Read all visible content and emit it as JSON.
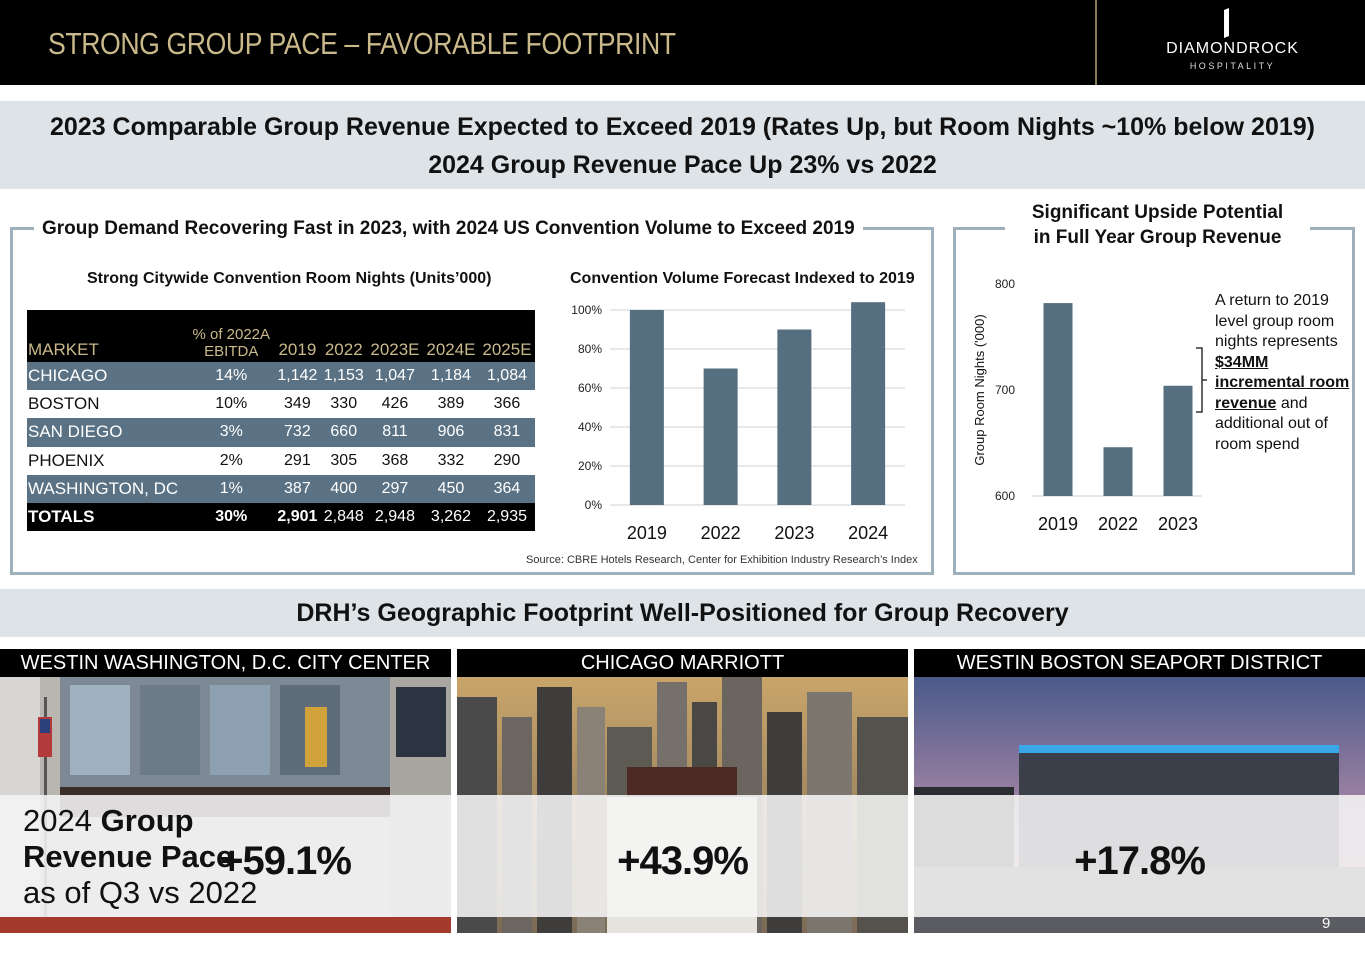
{
  "header": {
    "title": "STRONG GROUP PACE – FAVORABLE FOOTPRINT",
    "logo_brand": "DIAMONDROCK",
    "logo_sub": "HOSPITALITY"
  },
  "banner": {
    "line1": "2023 Comparable Group Revenue Expected to Exceed 2019 (Rates Up, but Room Nights ~10% below 2019)",
    "line2": "2024 Group Revenue Pace Up 23% vs 2022"
  },
  "left_section": {
    "title": "Group Demand Recovering Fast in 2023, with 2024 US Convention Volume to Exceed 2019",
    "table_title": "Strong Citywide Convention Room Nights (Units’000)",
    "chart_title": "Convention Volume Forecast Indexed to 2019",
    "source": "Source:  CBRE Hotels Research, Center for Exhibition Industry Research’s Index"
  },
  "table": {
    "headers": {
      "market": "MARKET",
      "pct_line1": "% of 2022A",
      "pct_line2": "EBITDA",
      "y2019": "2019",
      "y2022": "2022",
      "y2023": "2023E",
      "y2024": "2024E",
      "y2025": "2025E"
    },
    "rows": [
      {
        "market": "CHICAGO",
        "pct": "14%",
        "y2019": "1,142",
        "y2022": "1,153",
        "y2023": "1,047",
        "y2024": "1,184",
        "y2025": "1,084"
      },
      {
        "market": "BOSTON",
        "pct": "10%",
        "y2019": "349",
        "y2022": "330",
        "y2023": "426",
        "y2024": "389",
        "y2025": "366"
      },
      {
        "market": "SAN DIEGO",
        "pct": "3%",
        "y2019": "732",
        "y2022": "660",
        "y2023": "811",
        "y2024": "906",
        "y2025": "831"
      },
      {
        "market": "PHOENIX",
        "pct": "2%",
        "y2019": "291",
        "y2022": "305",
        "y2023": "368",
        "y2024": "332",
        "y2025": "290"
      },
      {
        "market": "WASHINGTON, DC",
        "pct": "1%",
        "y2019": "387",
        "y2022": "400",
        "y2023": "297",
        "y2024": "450",
        "y2025": "364"
      }
    ],
    "totals": {
      "market": "TOTALS",
      "pct": "30%",
      "y2019": "2,901",
      "y2022": "2,848",
      "y2023": "2,948",
      "y2024": "3,262",
      "y2025": "2,935"
    }
  },
  "chart_data": [
    {
      "type": "bar",
      "title": "Convention Volume Forecast Indexed to 2019",
      "categories": [
        "2019",
        "2022",
        "2023",
        "2024"
      ],
      "values": [
        100,
        70,
        90,
        104
      ],
      "ylim": [
        0,
        100
      ],
      "yticks": [
        "0%",
        "20%",
        "40%",
        "60%",
        "80%",
        "100%"
      ],
      "grid": true,
      "color": "#566f80"
    },
    {
      "type": "bar",
      "title": "",
      "ylabel": "Group Room Nights ('000)",
      "categories": [
        "2019",
        "2022",
        "2023"
      ],
      "values": [
        782,
        646,
        704
      ],
      "ylim": [
        600,
        800
      ],
      "yticks": [
        "600",
        "700",
        "800"
      ],
      "grid": false,
      "color": "#566f80"
    }
  ],
  "right_section": {
    "title_line1": "Significant Upside Potential",
    "title_line2": "in Full Year Group Revenue",
    "note_pre": "A return to 2019 level group room nights represents",
    "note_em": "$34MM incremental room revenue",
    "note_post": "and additional out of room spend"
  },
  "footprint": {
    "title": "DRH’s Geographic Footprint Well-Positioned for Group Recovery",
    "pace_label_1": "2024",
    "pace_label_2": "Group",
    "pace_label_3": "Revenue Pace",
    "pace_label_4": "as of Q3 vs 2022",
    "hotels": [
      {
        "name": "WESTIN WASHINGTON, D.C. CITY CENTER",
        "value": "+59.1%"
      },
      {
        "name": "CHICAGO MARRIOTT",
        "value": "+43.9%"
      },
      {
        "name": "WESTIN BOSTON SEAPORT DISTRICT",
        "value": "+17.8%"
      }
    ]
  },
  "page_number": "9",
  "colors": {
    "bar": "#566f80",
    "accent_gold": "#c9b98a",
    "row_shade": "#5a7284",
    "box_border": "#9db0bc"
  }
}
